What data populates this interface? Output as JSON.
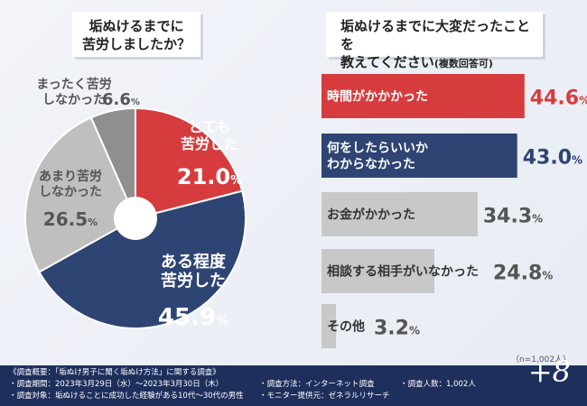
{
  "chart_data": [
    {
      "type": "pie",
      "title": "垢ぬけるまでに苦労しましたか？",
      "title_lines": [
        "垢ぬけるまでに",
        "苦労しましたか？"
      ],
      "slices": [
        {
          "label_lines": [
            "とても",
            "苦労した"
          ],
          "value": 21.0,
          "color": "#d63c3e",
          "text_color": "#ffffff"
        },
        {
          "label_lines": [
            "ある程度",
            "苦労した"
          ],
          "value": 45.9,
          "color": "#2e4473",
          "text_color": "#ffffff"
        },
        {
          "label_lines": [
            "あまり苦労",
            "しなかった"
          ],
          "value": 26.5,
          "color": "#bfbfbf",
          "text_color": "#555555"
        },
        {
          "label_lines": [
            "まったく苦労",
            "しなかった"
          ],
          "value": 6.6,
          "color": "#8f8f8f",
          "text_color": "#555555"
        }
      ],
      "unit": "%"
    },
    {
      "type": "bar",
      "orientation": "horizontal",
      "title": "垢ぬけるまでに大変だったことを教えてください(複数回答可)",
      "title_main": "垢ぬけるまでに大変だったことを",
      "title_line2": "教えてください",
      "title_sub": "(複数回答可)",
      "categories": [
        "時間がかかかった",
        "何をしたらいいかわからなかった",
        "お金がかかった",
        "相談する相手がいなかった",
        "その他"
      ],
      "category_lines": [
        [
          "時間がかかかった"
        ],
        [
          "何をしたらいいか",
          "わからなかった"
        ],
        [
          "お金がかかった"
        ],
        [
          "相談する相手がいなかった"
        ],
        [
          "その他"
        ]
      ],
      "values": [
        44.6,
        43.0,
        34.3,
        24.8,
        3.2
      ],
      "colors": [
        "#d63c3e",
        "#2e4473",
        "#c8c8c8",
        "#c8c8c8",
        "#c8c8c8"
      ],
      "text_colors": [
        "#ffffff",
        "#ffffff",
        "#333333",
        "#333333",
        "#333333"
      ],
      "value_colors": [
        "#d63c3e",
        "#2e4473",
        "#555555",
        "#555555",
        "#555555"
      ],
      "unit": "%",
      "xlim": [
        0,
        50
      ]
    }
  ],
  "sample_note": "（n=1,002人）",
  "footer": {
    "summary": "《調査概要：「垢ぬけ男子に聞く垢ぬけ方法」に関する調査》",
    "period": "・調査期間：2023年3月29日（水）～2023年3月30日（木）",
    "method": "・調査方法：インターネット調査",
    "count": "・調査人数：1,002人",
    "target": "・調査対象：垢ぬけることに成功した経験がある10代～30代の男性",
    "provider": "・モニター提供元：ゼネラルリサーチ",
    "brand": "+8"
  }
}
